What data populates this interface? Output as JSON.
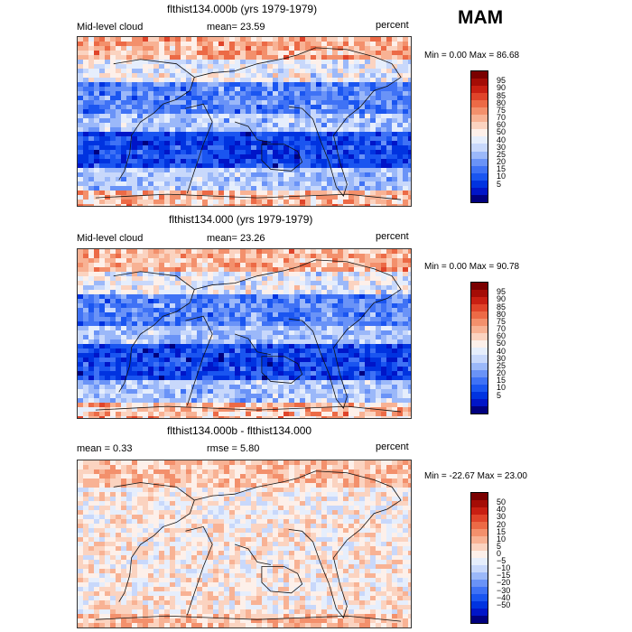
{
  "season": "MAM",
  "colors": {
    "abs_scale": [
      "#00007f",
      "#0015c8",
      "#0033e0",
      "#1a55f0",
      "#3f72f5",
      "#6a93f7",
      "#9bb8f9",
      "#c8d8fb",
      "#e6eefc",
      "#fdf0ea",
      "#fbd3c0",
      "#f8b294",
      "#f3906c",
      "#ec6a46",
      "#e0442a",
      "#c81f12",
      "#a40c06",
      "#7a0000"
    ],
    "diff_scale": [
      "#00007f",
      "#0015c8",
      "#0033e0",
      "#1a55f0",
      "#3f72f5",
      "#6a93f7",
      "#9bb8f9",
      "#c8d8fb",
      "#e6eefc",
      "#fdf0ea",
      "#fbd3c0",
      "#f8b294",
      "#f3906c",
      "#ec6a46",
      "#e0442a",
      "#c81f12",
      "#a40c06",
      "#7a0000"
    ]
  },
  "panels": [
    {
      "title": "flthist134.000b (yrs 1979-1979)",
      "left_label": "Mid-level cloud",
      "stat_text": "mean=  23.59",
      "units": "percent",
      "minmax_text": "Min =    0.00 Max =  86.68",
      "colorbar_ticks": [
        "95",
        "90",
        "85",
        "80",
        "75",
        "70",
        "60",
        "50",
        "40",
        "30",
        "25",
        "20",
        "15",
        "10",
        "5"
      ],
      "scale": "abs"
    },
    {
      "title": "flthist134.000 (yrs 1979-1979)",
      "left_label": "Mid-level cloud",
      "stat_text": "mean=  23.26",
      "units": "percent",
      "minmax_text": "Min =    0.00 Max =  90.78",
      "colorbar_ticks": [
        "95",
        "90",
        "85",
        "80",
        "75",
        "70",
        "60",
        "50",
        "40",
        "30",
        "25",
        "20",
        "15",
        "10",
        "5"
      ],
      "scale": "abs"
    },
    {
      "title": "flthist134.000b - flthist134.000",
      "left_label": "mean =    0.33",
      "stat_text": "rmse =    5.80",
      "units": "percent",
      "minmax_text": "Min = -22.67 Max =  23.00",
      "colorbar_ticks": [
        "50",
        "40",
        "30",
        "20",
        "15",
        "10",
        "5",
        "0",
        "−5",
        "−10",
        "−15",
        "−20",
        "−30",
        "−40",
        "−50"
      ],
      "scale": "diff"
    }
  ]
}
